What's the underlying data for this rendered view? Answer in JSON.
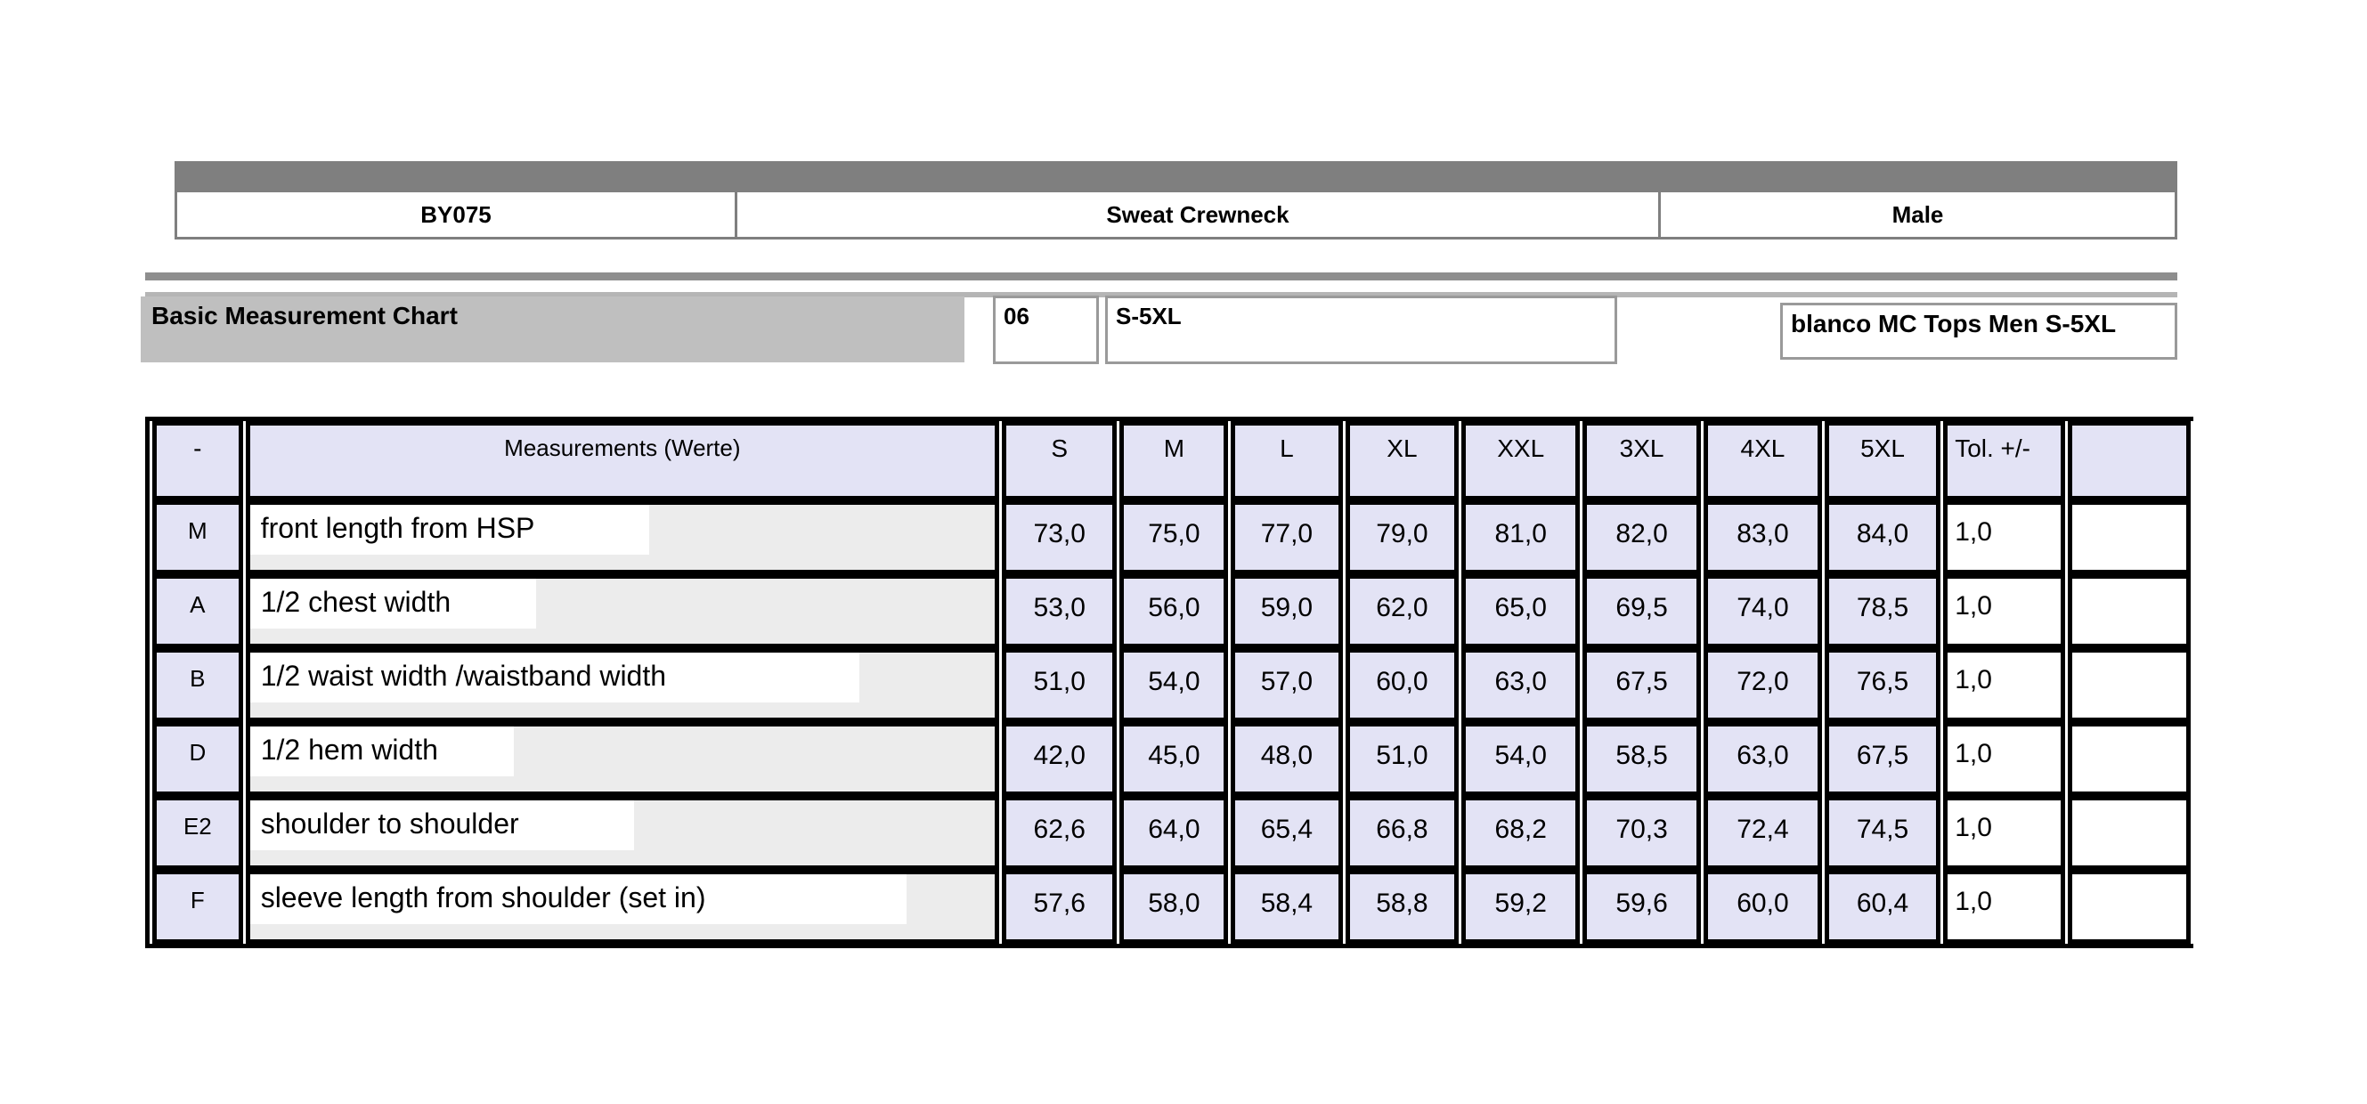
{
  "colors": {
    "top_bar": "#7f7f7f",
    "id_table_border": "#7f7f7f",
    "section_title_fill": "#bfbfbf",
    "info_box_border": "#9a9a9a",
    "table_header_fill": "#e3e3f5",
    "measurement_cell_fill": "#ececec",
    "measurement_highlight_fill": "#ffffff",
    "table_border": "#000000"
  },
  "id_row": {
    "cells": [
      {
        "label": "BY075"
      },
      {
        "label": "Sweat Crewneck"
      },
      {
        "label": "Male"
      }
    ]
  },
  "info_section": {
    "section_title": "Basic Measurement Chart",
    "code": "06",
    "size_range": "S-5XL",
    "collection": "blanco MC Tops Men S-5XL"
  },
  "measurement_table": {
    "columns": [
      "-",
      "Measurements (Werte)",
      "S",
      "M",
      "L",
      "XL",
      "XXL",
      "3XL",
      "4XL",
      "5XL",
      "Tol. +/-"
    ],
    "rows": [
      {
        "code": "M",
        "label": "front length from HSP",
        "values": [
          "73,0",
          "75,0",
          "77,0",
          "79,0",
          "81,0",
          "82,0",
          "83,0",
          "84,0"
        ],
        "tolerance": "1,0"
      },
      {
        "code": "A",
        "label": "1/2 chest width",
        "values": [
          "53,0",
          "56,0",
          "59,0",
          "62,0",
          "65,0",
          "69,5",
          "74,0",
          "78,5"
        ],
        "tolerance": "1,0"
      },
      {
        "code": "B",
        "label": "1/2 waist width /waistband width",
        "values": [
          "51,0",
          "54,0",
          "57,0",
          "60,0",
          "63,0",
          "67,5",
          "72,0",
          "76,5"
        ],
        "tolerance": "1,0"
      },
      {
        "code": "D",
        "label": "1/2 hem width",
        "values": [
          "42,0",
          "45,0",
          "48,0",
          "51,0",
          "54,0",
          "58,5",
          "63,0",
          "67,5"
        ],
        "tolerance": "1,0"
      },
      {
        "code": "E2",
        "label": "shoulder to shoulder",
        "values": [
          "62,6",
          "64,0",
          "65,4",
          "66,8",
          "68,2",
          "70,3",
          "72,4",
          "74,5"
        ],
        "tolerance": "1,0"
      },
      {
        "code": "F",
        "label": "sleeve length from shoulder (set in)",
        "values": [
          "57,6",
          "58,0",
          "58,4",
          "58,8",
          "59,2",
          "59,6",
          "60,0",
          "60,4"
        ],
        "tolerance": "1,0"
      }
    ]
  }
}
